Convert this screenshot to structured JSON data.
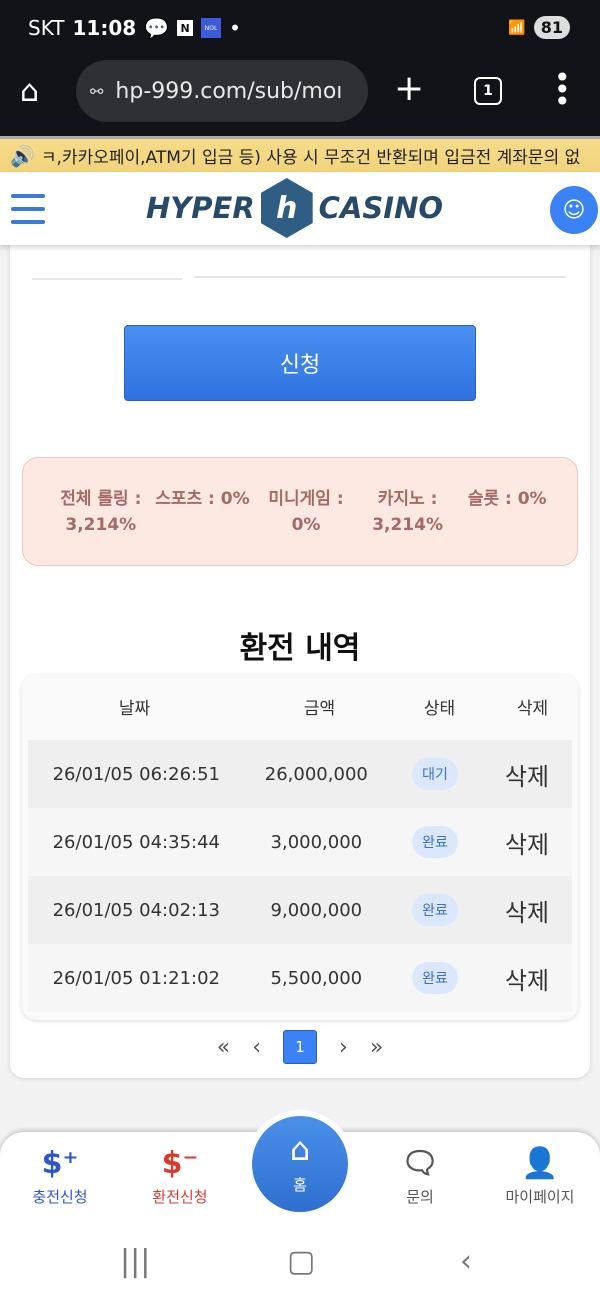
{
  "status_bar": {
    "carrier": "SKT",
    "time": "11:08",
    "battery": "81"
  },
  "browser": {
    "url": "hp-999.com/sub/moı",
    "tab_count": "1"
  },
  "notice": "ㅋ,카카오페이,ATM기 입금 등) 사용 시 무조건 반환되며 입금전 계좌문의 없",
  "header": {
    "logo_left": "HYPER",
    "logo_mark": "h",
    "logo_right": "CASINO"
  },
  "form": {
    "submit_label": "신청"
  },
  "rolling": [
    {
      "label": "전체 롤링 :",
      "value": "3,214%"
    },
    {
      "label": "스포츠 : 0%",
      "value": ""
    },
    {
      "label": "미니게임 :",
      "value": "0%"
    },
    {
      "label": "카지노 :",
      "value": "3,214%"
    },
    {
      "label": "슬롯 : 0%",
      "value": ""
    }
  ],
  "history": {
    "title": "환전 내역",
    "columns": [
      "날짜",
      "금액",
      "상태",
      "삭제"
    ],
    "rows": [
      {
        "date": "26/01/05 06:26:51",
        "amount": "26,000,000",
        "status": "대기",
        "delete": "삭제"
      },
      {
        "date": "26/01/05 04:35:44",
        "amount": "3,000,000",
        "status": "완료",
        "delete": "삭제"
      },
      {
        "date": "26/01/05 04:02:13",
        "amount": "9,000,000",
        "status": "완료",
        "delete": "삭제"
      },
      {
        "date": "26/01/05 01:21:02",
        "amount": "5,500,000",
        "status": "완료",
        "delete": "삭제"
      }
    ]
  },
  "pagination": {
    "first": "«",
    "prev": "‹",
    "current": "1",
    "next": "›",
    "last": "»"
  },
  "bottom_nav": [
    {
      "label": "충전신청",
      "color": "#2f56c9",
      "icon": "dollar-plus-icon"
    },
    {
      "label": "환전신청",
      "color": "#d63b2f",
      "icon": "dollar-minus-icon"
    },
    {
      "label": "홈",
      "color": "#ffffff",
      "icon": "home-icon"
    },
    {
      "label": "문의",
      "color": "#555555",
      "icon": "chat-icon"
    },
    {
      "label": "마이페이지",
      "color": "#555555",
      "icon": "user-icon"
    }
  ]
}
